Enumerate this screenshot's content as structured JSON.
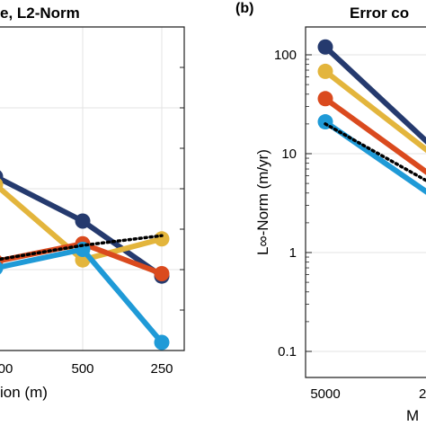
{
  "chart_data": [
    {
      "type": "line",
      "title": "e, L2-Norm",
      "xlabel": "ion (m)",
      "ylabel": "",
      "x_ticks": [
        "00",
        "500",
        "250"
      ],
      "x": [
        1000,
        500,
        250
      ],
      "y_ticks": [],
      "ylim": [
        0,
        4
      ],
      "grid": true,
      "series": [
        {
          "color": "#253a6e",
          "values": [
            2.15,
            1.6,
            0.92
          ],
          "style": "solid"
        },
        {
          "color": "#e3b53c",
          "values": [
            2.05,
            1.12,
            1.38
          ],
          "style": "solid"
        },
        {
          "color": "#da4a1e",
          "values": [
            1.1,
            1.32,
            0.95
          ],
          "style": "solid"
        },
        {
          "color": "#1f9ad7",
          "values": [
            1.02,
            1.25,
            0.1
          ],
          "style": "solid"
        },
        {
          "color": "#000000",
          "values": [
            1.12,
            1.3,
            1.42
          ],
          "style": "dotted"
        }
      ]
    },
    {
      "type": "line",
      "panel_label": "(b)",
      "title": "Error co",
      "xlabel": "M",
      "ylabel": "L∞-Norm (m/yr)",
      "x_ticks": [
        "5000",
        "2"
      ],
      "x": [
        5000,
        2000
      ],
      "y_scale": "log",
      "y_ticks": [
        "100",
        "10",
        "1",
        "0.1"
      ],
      "ylim": [
        0.05,
        200
      ],
      "grid": true,
      "series": [
        {
          "color": "#253a6e",
          "values": [
            120,
            12
          ],
          "style": "solid"
        },
        {
          "color": "#e3b53c",
          "values": [
            68,
            10
          ],
          "style": "solid"
        },
        {
          "color": "#da4a1e",
          "values": [
            36,
            6
          ],
          "style": "solid"
        },
        {
          "color": "#1f9ad7",
          "values": [
            21,
            3.8
          ],
          "style": "solid"
        },
        {
          "color": "#000000",
          "values": [
            20,
            5
          ],
          "style": "dotted"
        }
      ]
    }
  ]
}
